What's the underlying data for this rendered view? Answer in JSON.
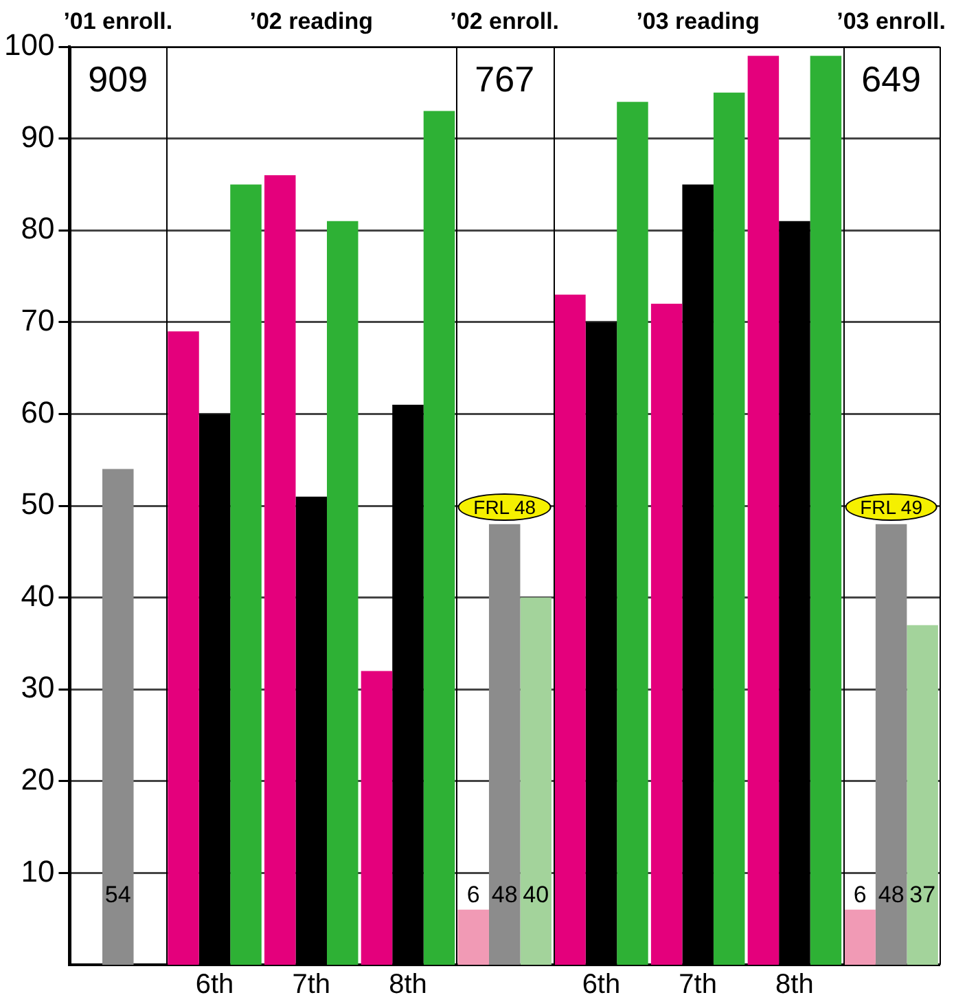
{
  "chart_data": {
    "type": "bar",
    "categories": [
      null,
      "6th",
      "7th",
      "8th",
      null,
      "6th",
      "7th",
      "8th",
      null
    ],
    "series": [
      {
        "colors": [
          "#e4007c",
          "#e4007c",
          "#e4007c",
          "#e4007c",
          "#f19ab5",
          "#e4007c",
          "#e4007c",
          "#e4007c",
          "#f19ab5"
        ],
        "values": [
          null,
          69,
          86,
          32,
          6,
          73,
          72,
          99,
          6
        ],
        "value_labels": [
          null,
          null,
          null,
          null,
          "6",
          null,
          null,
          null,
          "6"
        ]
      },
      {
        "colors": [
          "#8c8c8c",
          "#000000",
          "#000000",
          "#000000",
          "#8c8c8c",
          "#000000",
          "#000000",
          "#000000",
          "#8c8c8c"
        ],
        "values": [
          54,
          60,
          51,
          61,
          48,
          70,
          85,
          81,
          48
        ],
        "value_labels": [
          "54",
          null,
          null,
          null,
          "48",
          null,
          null,
          null,
          "48"
        ]
      },
      {
        "colors": [
          "#2eb135",
          "#2eb135",
          "#2eb135",
          "#2eb135",
          "#a3d39b",
          "#2eb135",
          "#2eb135",
          "#2eb135",
          "#a3d39b"
        ],
        "values": [
          null,
          85,
          81,
          93,
          40,
          94,
          95,
          99,
          37
        ],
        "value_labels": [
          null,
          null,
          null,
          null,
          "40",
          null,
          null,
          null,
          "37"
        ]
      }
    ],
    "ylim": [
      0,
      100
    ],
    "yticks": [
      10,
      20,
      30,
      40,
      50,
      60,
      70,
      80,
      90,
      100
    ],
    "grid": "y",
    "legend": false,
    "annotations": [
      "’01 enroll.",
      "’02 reading",
      "’02 enroll.",
      "’03 reading",
      "’03 enroll.",
      "909",
      "767",
      "649",
      "FRL 48",
      "FRL 49"
    ]
  }
}
